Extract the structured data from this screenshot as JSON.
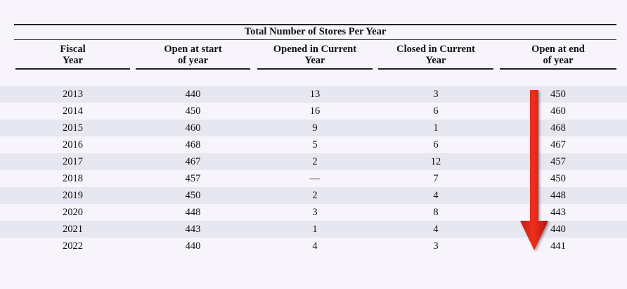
{
  "table": {
    "title": "Total Number of Stores Per Year",
    "columns": [
      {
        "line1": "Fiscal",
        "line2": "Year"
      },
      {
        "line1": "Open at start",
        "line2": "of year"
      },
      {
        "line1": "Opened in Current",
        "line2": "Year"
      },
      {
        "line1": "Closed in Current",
        "line2": "Year"
      },
      {
        "line1": "Open at end",
        "line2": "of year"
      }
    ],
    "rows": [
      {
        "year": "2013",
        "open_start": "440",
        "opened": "13",
        "closed": "3",
        "open_end": "450"
      },
      {
        "year": "2014",
        "open_start": "450",
        "opened": "16",
        "closed": "6",
        "open_end": "460"
      },
      {
        "year": "2015",
        "open_start": "460",
        "opened": "9",
        "closed": "1",
        "open_end": "468"
      },
      {
        "year": "2016",
        "open_start": "468",
        "opened": "5",
        "closed": "6",
        "open_end": "467"
      },
      {
        "year": "2017",
        "open_start": "467",
        "opened": "2",
        "closed": "12",
        "open_end": "457"
      },
      {
        "year": "2018",
        "open_start": "457",
        "opened": "—",
        "closed": "7",
        "open_end": "450"
      },
      {
        "year": "2019",
        "open_start": "450",
        "opened": "2",
        "closed": "4",
        "open_end": "448"
      },
      {
        "year": "2020",
        "open_start": "448",
        "opened": "3",
        "closed": "8",
        "open_end": "443"
      },
      {
        "year": "2021",
        "open_start": "443",
        "opened": "1",
        "closed": "4",
        "open_end": "440"
      },
      {
        "year": "2022",
        "open_start": "440",
        "opened": "4",
        "closed": "3",
        "open_end": "441"
      }
    ]
  },
  "annotation": {
    "arrow_icon": "red-down-arrow",
    "arrow_color": "#e8271a"
  },
  "colors": {
    "row_shade": "#e7e7f2",
    "background": "#f7f4fb"
  }
}
